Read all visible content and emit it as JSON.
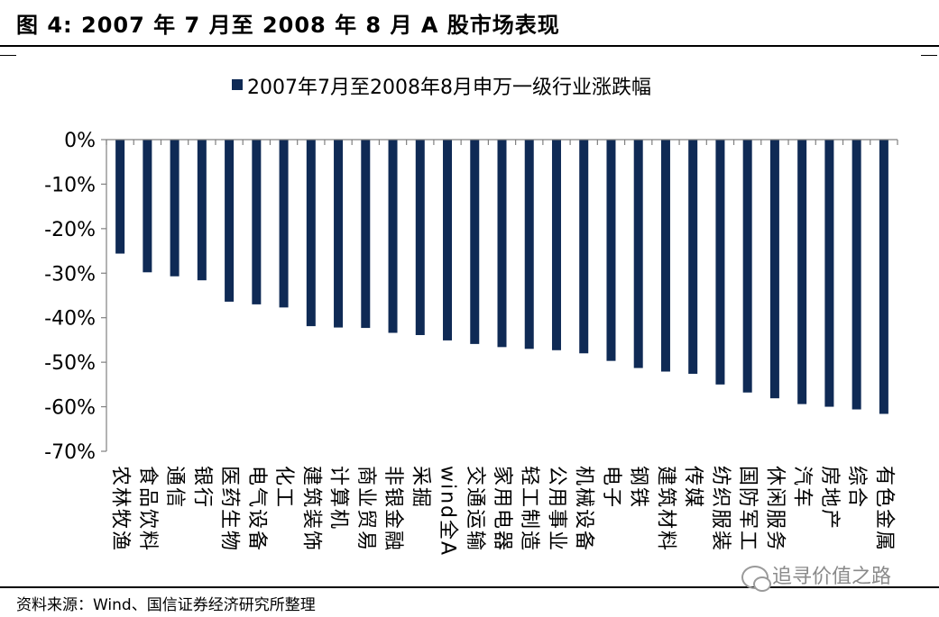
{
  "figure": {
    "title": "图 4:  2007 年 7 月至 2008 年 8 月 A 股市场表现",
    "source": "资料来源：Wind、国信证券经济研究所整理",
    "watermark": "追寻价值之路"
  },
  "colors": {
    "bar": "#0f2a55",
    "axis": "#808080"
  },
  "chart_data": {
    "type": "bar",
    "legend": {
      "position": "top",
      "labels": [
        "2007年7月至2008年8月申万一级行业涨跌幅"
      ]
    },
    "ylim": [
      -70,
      0
    ],
    "yticks": [
      0,
      -10,
      -20,
      -30,
      -40,
      -50,
      -60,
      -70
    ],
    "ytick_labels": [
      "0%",
      "-10%",
      "-20%",
      "-30%",
      "-40%",
      "-50%",
      "-60%",
      "-70%"
    ],
    "grid": false,
    "categories": [
      "农林牧渔",
      "食品饮料",
      "通信",
      "银行",
      "医药生物",
      "电气设备",
      "化工",
      "建筑装饰",
      "计算机",
      "商业贸易",
      "非银金融",
      "采掘",
      "wind全A",
      "交通运输",
      "家用电器",
      "轻工制造",
      "公用事业",
      "机械设备",
      "电子",
      "钢铁",
      "建筑材料",
      "传媒",
      "纺织服装",
      "国防军工",
      "休闲服务",
      "汽车",
      "房地产",
      "综合",
      "有色金属"
    ],
    "series": [
      {
        "name": "2007年7月至2008年8月申万一级行业涨跌幅",
        "values": [
          -25.6,
          -29.8,
          -30.7,
          -31.6,
          -36.4,
          -37.0,
          -37.7,
          -41.9,
          -42.2,
          -42.3,
          -43.4,
          -43.9,
          -45.1,
          -45.9,
          -46.6,
          -47.0,
          -47.3,
          -48.0,
          -49.7,
          -51.3,
          -52.1,
          -52.6,
          -55.0,
          -56.8,
          -58.1,
          -59.4,
          -60.0,
          -60.6,
          -61.6
        ]
      }
    ]
  }
}
